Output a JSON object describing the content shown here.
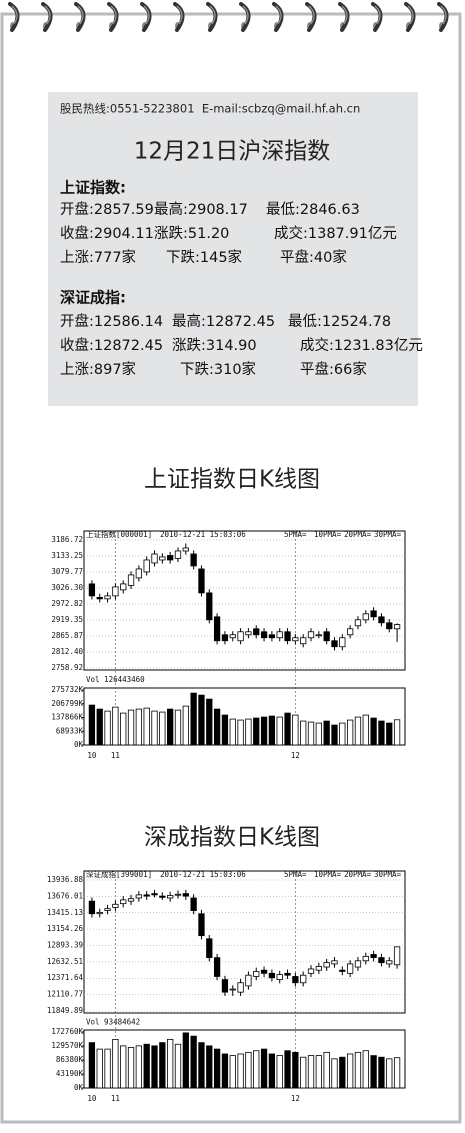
{
  "info": {
    "hotline": "股民热线:0551-5223801  E-mail:scbzq@mail.hf.ah.cn",
    "title": "12月21日沪深指数",
    "blocks": [
      {
        "heading": "上证指数:",
        "rows": [
          [
            "开盘:2857.59",
            "最高:2908.17",
            "最低:2846.63"
          ],
          [
            "收盘:2904.11",
            "涨跌:51.20",
            "成交:1387.91亿元"
          ],
          [
            "上涨:777家",
            "下跌:145家",
            "平盘:40家"
          ]
        ]
      },
      {
        "heading": "深证成指:",
        "rows": [
          [
            "开盘:12586.14",
            "最高:12872.45",
            "最低:12524.78"
          ],
          [
            "收盘:12872.45",
            "涨跌:314.90",
            "成交:1231.83亿元"
          ],
          [
            "上涨:897家",
            "下跌:310家",
            "平盘:66家"
          ]
        ]
      }
    ]
  },
  "charts": [
    {
      "type": "candlestick",
      "title": "上证指数日K线图",
      "label": "上证指数[000001]",
      "timestamp": "2010-12-21 15:03:06",
      "legend": [
        "5PMA=",
        "10PMA=",
        "20PMA=",
        "30PMA="
      ],
      "grid": true,
      "categories": [
        "10",
        null,
        null,
        "11",
        null,
        null,
        null,
        null,
        null,
        null,
        null,
        null,
        null,
        null,
        null,
        null,
        null,
        null,
        null,
        null,
        null,
        null,
        null,
        null,
        null,
        null,
        "12",
        null,
        null,
        null,
        null,
        null,
        null,
        null,
        null,
        null,
        null,
        null,
        null,
        null
      ],
      "open": [
        3040,
        2995,
        2990,
        3000,
        3020,
        3035,
        3060,
        3080,
        3110,
        3120,
        3135,
        3125,
        3150,
        3140,
        3090,
        3010,
        2930,
        2870,
        2860,
        2850,
        2870,
        2890,
        2880,
        2870,
        2860,
        2880,
        2850,
        2840,
        2860,
        2870,
        2880,
        2850,
        2830,
        2870,
        2900,
        2920,
        2950,
        2930,
        2910,
        2890
      ],
      "high": [
        3052,
        3007,
        3012,
        3042,
        3052,
        3082,
        3102,
        3132,
        3152,
        3142,
        3147,
        3162,
        3175,
        3152,
        3102,
        3022,
        2942,
        2882,
        2882,
        2892,
        2892,
        2902,
        2892,
        2882,
        2892,
        2892,
        2872,
        2872,
        2892,
        2882,
        2892,
        2862,
        2872,
        2902,
        2932,
        2952,
        2962,
        2942,
        2922,
        2908
      ],
      "low": [
        2988,
        2978,
        2978,
        2988,
        3008,
        3023,
        3048,
        3068,
        3098,
        3108,
        3108,
        3113,
        3138,
        3088,
        2998,
        2908,
        2838,
        2838,
        2848,
        2838,
        2858,
        2858,
        2848,
        2848,
        2848,
        2838,
        2838,
        2828,
        2848,
        2858,
        2838,
        2818,
        2818,
        2858,
        2888,
        2908,
        2918,
        2898,
        2878,
        2846
      ],
      "close": [
        3000,
        2990,
        3000,
        3030,
        3040,
        3070,
        3090,
        3120,
        3140,
        3130,
        3120,
        3150,
        3160,
        3100,
        3010,
        2920,
        2850,
        2850,
        2870,
        2880,
        2880,
        2870,
        2860,
        2860,
        2880,
        2850,
        2860,
        2860,
        2880,
        2870,
        2850,
        2830,
        2860,
        2890,
        2920,
        2940,
        2930,
        2910,
        2890,
        2904
      ],
      "ylim": [
        2758.92,
        3186.72
      ],
      "yticks": [
        3186.72,
        3133.25,
        3079.77,
        {
          "value": 3026.3,
          "label": "3026.30"
        },
        2972.82,
        2919.35,
        2865.87,
        {
          "value": 2812.4,
          "label": "2812.40"
        },
        2758.92
      ],
      "volume": {
        "label": "Vol 126443460",
        "values": [
          200000,
          180000,
          170000,
          190000,
          160000,
          175000,
          180000,
          185000,
          170000,
          165000,
          180000,
          175000,
          195000,
          260000,
          250000,
          230000,
          180000,
          150000,
          130000,
          125000,
          130000,
          135000,
          140000,
          145000,
          140000,
          160000,
          150000,
          120000,
          115000,
          110000,
          120000,
          100000,
          110000,
          125000,
          140000,
          150000,
          135000,
          120000,
          110000,
          126443
        ],
        "ylim": [
          0,
          275732
        ],
        "yticks": [
          {
            "value": 275732,
            "label": "275732K"
          },
          {
            "value": 206799,
            "label": "206799K"
          },
          {
            "value": 137866,
            "label": "137866K"
          },
          {
            "value": 68933,
            "label": "68933K"
          },
          {
            "value": 0,
            "label": "0K"
          }
        ]
      }
    },
    {
      "type": "candlestick",
      "title": "深成指数日K线图",
      "label": "深证成指[399001]",
      "timestamp": "2010-12-21 15:03:06",
      "legend": [
        "5PMA=",
        "10PMA=",
        "20PMA=",
        "30PMA="
      ],
      "grid": true,
      "categories": [
        "10",
        null,
        null,
        "11",
        null,
        null,
        null,
        null,
        null,
        null,
        null,
        null,
        null,
        null,
        null,
        null,
        null,
        null,
        null,
        null,
        null,
        null,
        null,
        null,
        null,
        null,
        "12",
        null,
        null,
        null,
        null,
        null,
        null,
        null,
        null,
        null,
        null,
        null,
        null,
        null
      ],
      "open": [
        13600,
        13400,
        13450,
        13500,
        13560,
        13600,
        13650,
        13700,
        13720,
        13680,
        13650,
        13700,
        13720,
        13650,
        13400,
        13000,
        12700,
        12350,
        12200,
        12150,
        12250,
        12400,
        12500,
        12450,
        12350,
        12450,
        12400,
        12300,
        12450,
        12500,
        12550,
        12600,
        12500,
        12450,
        12550,
        12650,
        12750,
        12700,
        12600,
        12586
      ],
      "high": [
        13660,
        13480,
        13540,
        13610,
        13680,
        13700,
        13760,
        13760,
        13780,
        13740,
        13750,
        13770,
        13780,
        13710,
        13460,
        13060,
        12760,
        12410,
        12260,
        12360,
        12480,
        12540,
        12560,
        12510,
        12490,
        12510,
        12460,
        12480,
        12580,
        12620,
        12680,
        12710,
        12560,
        12660,
        12710,
        12780,
        12810,
        12760,
        12710,
        12872
      ],
      "low": [
        13340,
        13340,
        13390,
        13440,
        13500,
        13540,
        13590,
        13620,
        13660,
        13620,
        13590,
        13640,
        13620,
        13390,
        12990,
        12640,
        12340,
        12090,
        12090,
        12090,
        12190,
        12340,
        12390,
        12320,
        12290,
        12360,
        12240,
        12240,
        12390,
        12440,
        12490,
        12540,
        12420,
        12390,
        12490,
        12590,
        12640,
        12560,
        12540,
        12524
      ],
      "close": [
        13400,
        13420,
        13480,
        13550,
        13620,
        13640,
        13700,
        13680,
        13700,
        13660,
        13690,
        13710,
        13680,
        13450,
        13050,
        12700,
        12400,
        12150,
        12200,
        12300,
        12420,
        12480,
        12450,
        12380,
        12430,
        12420,
        12300,
        12420,
        12520,
        12560,
        12620,
        12650,
        12480,
        12600,
        12650,
        12720,
        12700,
        12620,
        12650,
        12872
      ],
      "ylim": [
        11849.89,
        13936.88
      ],
      "yticks": [
        13936.88,
        13676.01,
        13415.13,
        13154.26,
        12893.39,
        12632.51,
        12371.64,
        12110.77,
        11849.89
      ],
      "volume": {
        "label": "Vol 93484642",
        "values": [
          140000,
          120000,
          120000,
          150000,
          130000,
          125000,
          130000,
          135000,
          130000,
          140000,
          150000,
          135000,
          170000,
          160000,
          140000,
          130000,
          120000,
          105000,
          100000,
          105000,
          110000,
          115000,
          120000,
          105000,
          100000,
          115000,
          110000,
          95000,
          100000,
          100000,
          110000,
          90000,
          95000,
          105000,
          110000,
          115000,
          100000,
          95000,
          90000,
          93485
        ],
        "ylim": [
          0,
          172760
        ],
        "yticks": [
          {
            "value": 172760,
            "label": "172760K"
          },
          {
            "value": 129570,
            "label": "129570K"
          },
          {
            "value": 86380,
            "label": "86380K"
          },
          {
            "value": 43190,
            "label": "43190K"
          },
          {
            "value": 0,
            "label": "0K"
          }
        ]
      }
    }
  ]
}
